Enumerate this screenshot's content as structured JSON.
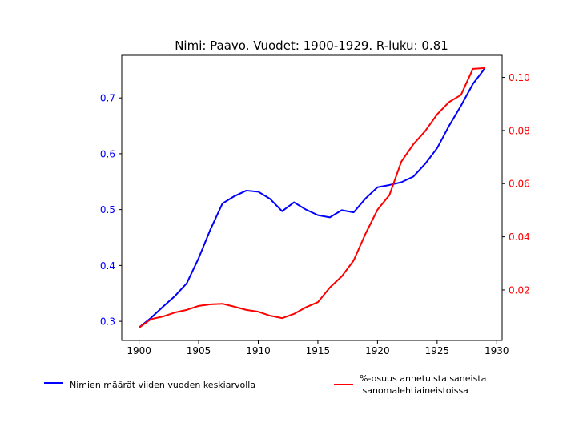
{
  "chart_data": {
    "type": "line",
    "title": "Nimi: Paavo. Vuodet: 1900-1929. R-luku: 0.81",
    "x": [
      1900,
      1901,
      1902,
      1903,
      1904,
      1905,
      1906,
      1907,
      1908,
      1909,
      1910,
      1911,
      1912,
      1913,
      1914,
      1915,
      1916,
      1917,
      1918,
      1919,
      1920,
      1921,
      1922,
      1923,
      1924,
      1925,
      1926,
      1927,
      1928,
      1929
    ],
    "x_ticks": [
      1900,
      1905,
      1910,
      1915,
      1920,
      1925,
      1930
    ],
    "xlim": [
      1898.55,
      1930.45
    ],
    "series": [
      {
        "name": "Nimien määrät viiden vuoden keskiarvolla",
        "axis": "left",
        "color": "#0000ff",
        "values": [
          0.289,
          0.306,
          0.326,
          0.345,
          0.368,
          0.413,
          0.465,
          0.511,
          0.524,
          0.534,
          0.532,
          0.519,
          0.497,
          0.513,
          0.5,
          0.49,
          0.486,
          0.499,
          0.495,
          0.52,
          0.54,
          0.544,
          0.549,
          0.559,
          0.582,
          0.61,
          0.65,
          0.686,
          0.725,
          0.753
        ]
      },
      {
        "name": "%-osuus annetuista saneista\n sanomalehtiaineistoissa",
        "axis": "right",
        "color": "#ff0000",
        "values": [
          0.0058,
          0.009,
          0.01,
          0.0115,
          0.0125,
          0.014,
          0.0146,
          0.0148,
          0.0137,
          0.0125,
          0.0118,
          0.0103,
          0.0094,
          0.011,
          0.0135,
          0.0154,
          0.0209,
          0.0251,
          0.0311,
          0.0412,
          0.0502,
          0.0557,
          0.0683,
          0.0748,
          0.0798,
          0.0861,
          0.0907,
          0.0934,
          0.1032,
          0.1035
        ]
      }
    ],
    "y_left": {
      "ticks": [
        0.3,
        0.4,
        0.5,
        0.6,
        0.7
      ],
      "tick_labels": [
        "0.3",
        "0.4",
        "0.5",
        "0.6",
        "0.7"
      ],
      "lim": [
        0.2657,
        0.7763
      ],
      "color": "#0000ff"
    },
    "y_right": {
      "ticks": [
        0.02,
        0.04,
        0.06,
        0.08,
        0.1
      ],
      "tick_labels": [
        "0.02",
        "0.04",
        "0.06",
        "0.08",
        "0.10"
      ],
      "lim": [
        0.001,
        0.1083
      ],
      "color": "#ff0000"
    },
    "xlabel": "",
    "ylabel": "",
    "grid": false,
    "legend": "bottom, outside plot"
  }
}
